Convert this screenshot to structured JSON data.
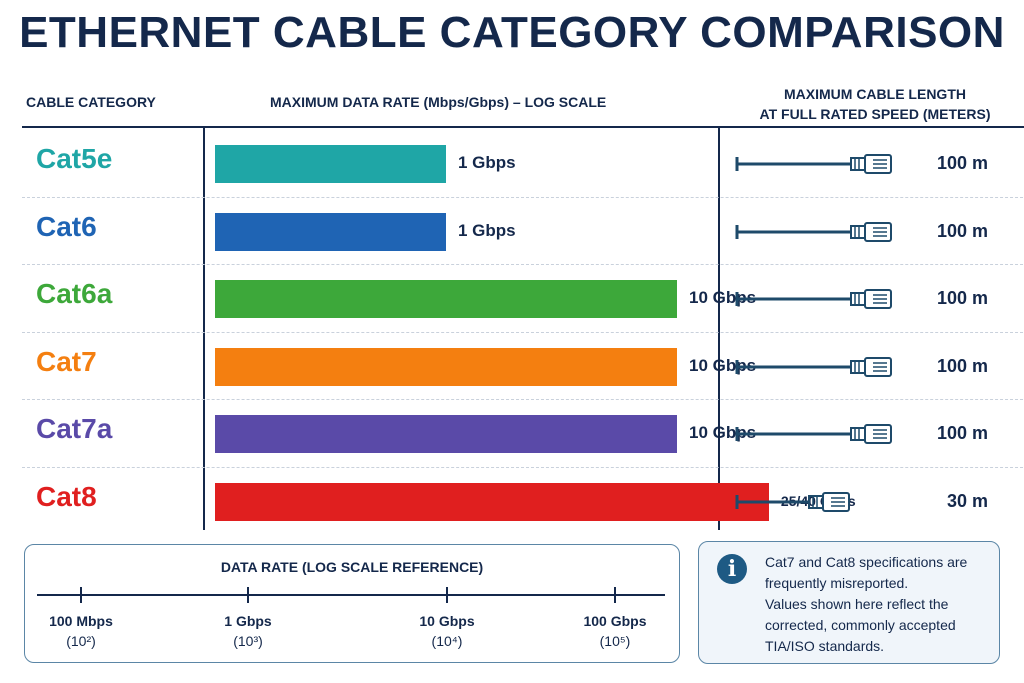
{
  "header": {
    "title": "ETHERNET CABLE CATEGORY COMPARISON",
    "col_category": "CABLE CATEGORY",
    "col_rate": "MAXIMUM DATA RATE (Mbps/Gbps) – LOG SCALE",
    "col_length_line1": "MAXIMUM CABLE LENGTH",
    "col_length_line2": "AT FULL RATED SPEED (METERS)"
  },
  "chart_data": {
    "type": "bar",
    "orientation": "horizontal",
    "scale": "log",
    "xlim_mbps": [
      100,
      100000
    ],
    "categories": [
      "Cat5e",
      "Cat6",
      "Cat6a",
      "Cat7",
      "Cat7a",
      "Cat8"
    ],
    "values_mbps": [
      1000,
      1000,
      10000,
      10000,
      10000,
      25000
    ],
    "value_labels": [
      "1 Gbps",
      "1 Gbps",
      "10 Gbps",
      "10 Gbps",
      "10 Gbps",
      "25/40 Gbps"
    ],
    "colors": [
      "#1fa6a6",
      "#1f64b4",
      "#3da83a",
      "#f47f10",
      "#5a4aa8",
      "#e01f1f"
    ],
    "max_length_m": [
      100,
      100,
      100,
      100,
      100,
      30
    ],
    "length_labels": [
      "100 m",
      "100 m",
      "100 m",
      "100 m",
      "100 m",
      "30 m"
    ]
  },
  "scale_reference": {
    "title": "DATA RATE (LOG SCALE REFERENCE)",
    "ticks": [
      {
        "label": "100 Mbps",
        "exp": "(10²)"
      },
      {
        "label": "1 Gbps",
        "exp": "(10³)"
      },
      {
        "label": "10 Gbps",
        "exp": "(10⁴)"
      },
      {
        "label": "100 Gbps",
        "exp": "(10⁵)"
      }
    ]
  },
  "note": {
    "icon": "info-icon",
    "lines": [
      "Cat7 and Cat8 specifications are",
      "frequently misreported.",
      "Values shown here reflect the",
      "corrected, commonly accepted",
      "TIA/ISO standards."
    ]
  },
  "colors": {
    "navy": "#14284b",
    "cable": "#1e4a6a",
    "box_border": "#5b86a6"
  }
}
